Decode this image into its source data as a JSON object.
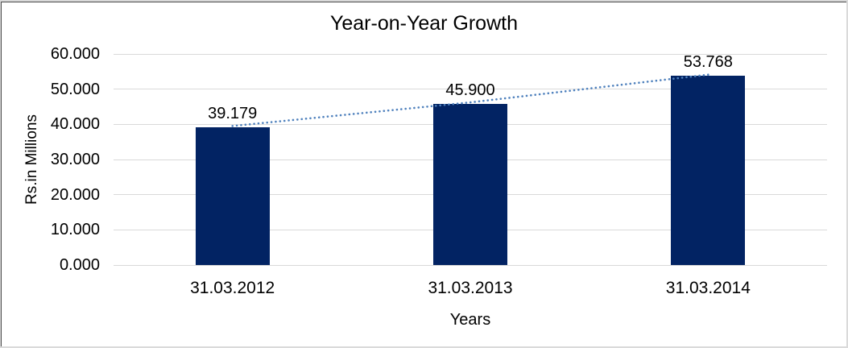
{
  "chart_data": {
    "type": "bar",
    "title": "Year-on-Year Growth",
    "xlabel": "Years",
    "ylabel": "Rs.in Millions",
    "categories": [
      "31.03.2012",
      "31.03.2013",
      "31.03.2014"
    ],
    "values": [
      39.179,
      45.9,
      53.768
    ],
    "value_labels": [
      "39.179",
      "45.900",
      "53.768"
    ],
    "ytick_labels": [
      "0.000",
      "10.000",
      "20.000",
      "30.000",
      "40.000",
      "50.000",
      "60.000"
    ],
    "ylim": [
      0,
      60
    ],
    "grid": true,
    "legend": "none",
    "series": [
      {
        "name": "values-bars",
        "type": "bar",
        "color": "#022363"
      },
      {
        "name": "trendline",
        "type": "line",
        "style": "dotted",
        "color": "#4f81bd"
      }
    ]
  },
  "colors": {
    "bar": "#022363",
    "trendline": "#4f81bd",
    "gridline": "#d9d9d9",
    "text": "#000000",
    "background": "#ffffff"
  }
}
